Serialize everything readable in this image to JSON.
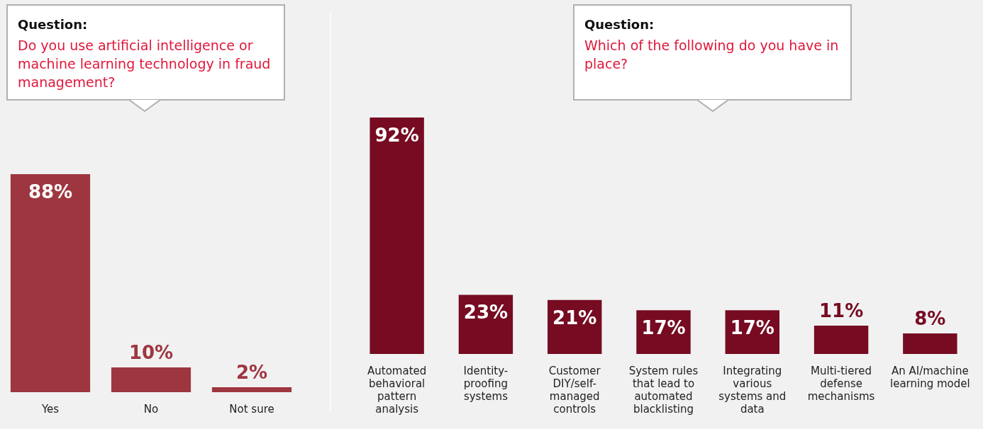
{
  "chart_data": [
    {
      "type": "bar",
      "title": "Question:",
      "subtitle": "Do you use artificial intelligence or machine learning technology in fraud management?",
      "categories": [
        "Yes",
        "No",
        "Not sure"
      ],
      "values": [
        88,
        10,
        2
      ],
      "value_labels": [
        "88%",
        "10%",
        "2%"
      ],
      "color": "#9e3640",
      "grid": false,
      "legend": false,
      "tick_labels": "x"
    },
    {
      "type": "bar",
      "title": "Question:",
      "subtitle": "Which of the following do you have in place?",
      "categories": [
        "Automated behavioral pattern analysis",
        "Identity-proofing systems",
        "Customer DIY/self-managed controls",
        "System rules that lead to automated blacklisting",
        "Integrating various systems and data",
        "Multi-tiered defense mechanisms",
        "An AI/machine learning model"
      ],
      "values": [
        92,
        23,
        21,
        17,
        17,
        11,
        8
      ],
      "value_labels": [
        "92%",
        "23%",
        "21%",
        "17%",
        "17%",
        "11%",
        "8%"
      ],
      "color": "#760b22",
      "grid": false,
      "legend": false,
      "tick_labels": "x"
    }
  ]
}
